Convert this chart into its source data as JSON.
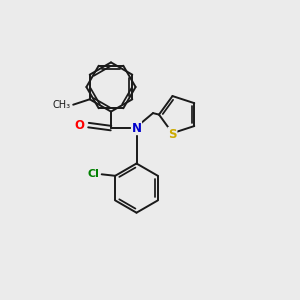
{
  "background_color": "#ebebeb",
  "bond_color": "#1a1a1a",
  "atom_colors": {
    "O": "#ff0000",
    "N": "#0000cc",
    "Cl": "#008000",
    "S": "#ccaa00"
  },
  "font_size": 8.5,
  "figsize": [
    3.0,
    3.0
  ],
  "dpi": 100
}
